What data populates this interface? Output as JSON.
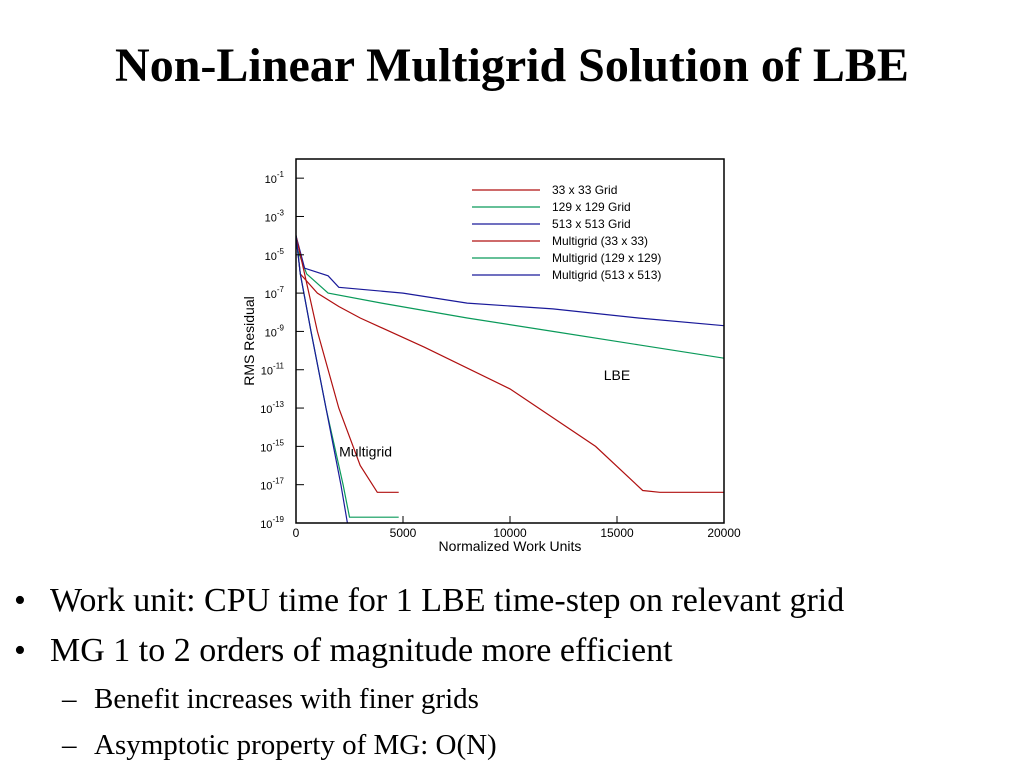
{
  "slide": {
    "title": "Non-Linear Multigrid Solution of LBE",
    "bullets": [
      {
        "level": 1,
        "text": "Work unit: CPU time for 1 LBE time-step on relevant grid"
      },
      {
        "level": 1,
        "text": "MG 1 to 2 orders of magnitude more efficient"
      },
      {
        "level": 2,
        "text": "Benefit increases with finer grids"
      },
      {
        "level": 2,
        "text": "Asymptotic property of MG: O(N)"
      }
    ]
  },
  "chart_data": {
    "type": "line",
    "title": "",
    "xlabel": "Normalized Work Units",
    "ylabel": "RMS Residual",
    "xlim": [
      0,
      20000
    ],
    "ylim": [
      1e-19,
      1
    ],
    "yscale": "log",
    "x_ticks": [
      0,
      5000,
      10000,
      15000,
      20000
    ],
    "x_tick_labels": [
      "0",
      "5000",
      "10000",
      "15000",
      "20000"
    ],
    "y_tick_exponents": [
      -1,
      -3,
      -5,
      -7,
      -9,
      -11,
      -13,
      -15,
      -17,
      -19
    ],
    "legend_position": "top-right",
    "annotations": [
      {
        "text": "LBE",
        "x": 15000,
        "y": 3e-12
      },
      {
        "text": "Multigrid",
        "x": 3250,
        "y": 3e-16
      }
    ],
    "series": [
      {
        "name": "33 x 33 Grid",
        "color": "#b01010",
        "points": [
          [
            0,
            0.0001
          ],
          [
            200,
            1e-06
          ],
          [
            1000,
            1e-07
          ],
          [
            2000,
            2e-08
          ],
          [
            3000,
            5e-09
          ],
          [
            6000,
            1.5e-10
          ],
          [
            10000,
            1e-12
          ],
          [
            14000,
            1e-15
          ],
          [
            16200,
            5e-18
          ],
          [
            17000,
            4e-18
          ],
          [
            20000,
            4e-18
          ]
        ]
      },
      {
        "name": "129 x 129 Grid",
        "color": "#0a9a5a",
        "points": [
          [
            0,
            3e-05
          ],
          [
            500,
            1e-06
          ],
          [
            1500,
            1e-07
          ],
          [
            4000,
            3e-08
          ],
          [
            8000,
            5e-09
          ],
          [
            12000,
            1e-09
          ],
          [
            16000,
            2e-10
          ],
          [
            20000,
            4e-11
          ]
        ]
      },
      {
        "name": "513 x 513 Grid",
        "color": "#1a1a9a",
        "points": [
          [
            0,
            0.0001
          ],
          [
            400,
            2e-06
          ],
          [
            1500,
            8e-07
          ],
          [
            2000,
            2e-07
          ],
          [
            5000,
            1e-07
          ],
          [
            8000,
            3e-08
          ],
          [
            12000,
            1.5e-08
          ],
          [
            16000,
            5e-09
          ],
          [
            20000,
            2e-09
          ]
        ]
      },
      {
        "name": "Multigrid (33 x 33)",
        "color": "#b01010",
        "points": [
          [
            0,
            0.0001
          ],
          [
            400,
            1e-06
          ],
          [
            1000,
            1e-09
          ],
          [
            2000,
            1e-13
          ],
          [
            3000,
            1e-16
          ],
          [
            3800,
            4e-18
          ],
          [
            4000,
            4e-18
          ],
          [
            4800,
            4e-18
          ]
        ]
      },
      {
        "name": "Multigrid (129 x 129)",
        "color": "#0a9a5a",
        "points": [
          [
            0,
            0.0001
          ],
          [
            200,
            1e-06
          ],
          [
            700,
            1e-09
          ],
          [
            1400,
            1e-13
          ],
          [
            2200,
            1e-17
          ],
          [
            2500,
            2e-19
          ],
          [
            3000,
            2e-19
          ],
          [
            4800,
            2e-19
          ]
        ]
      },
      {
        "name": "Multigrid (513 x 513)",
        "color": "#1a1a9a",
        "points": [
          [
            0,
            0.0001
          ],
          [
            200,
            1e-06
          ],
          [
            700,
            1e-09
          ],
          [
            1400,
            1e-13
          ],
          [
            2100,
            1e-17
          ],
          [
            2400,
            1e-19
          ]
        ]
      }
    ]
  }
}
